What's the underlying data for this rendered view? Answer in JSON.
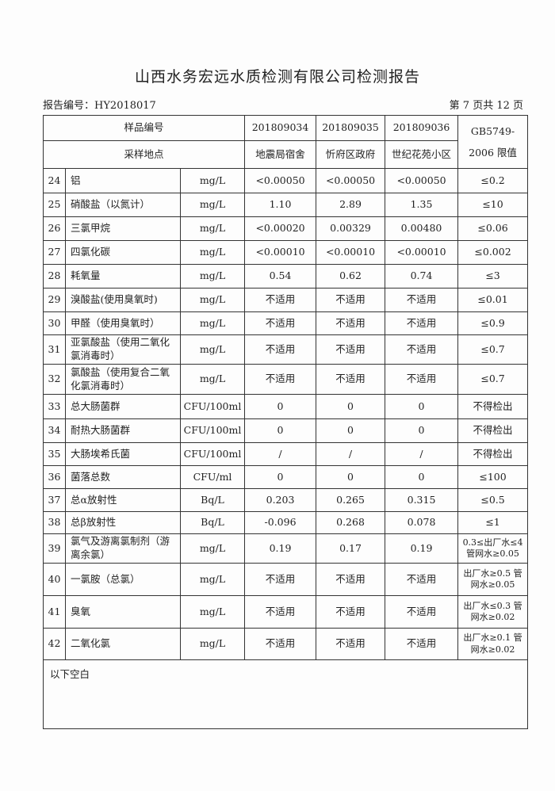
{
  "title": "山西水务宏远水质检测有限公司检测报告",
  "report_no": "报告编号：HY2018017",
  "page": "第 7 页共 12 页",
  "header": {
    "sample_no_label": "样品编号",
    "location_label": "采样地点",
    "samples": [
      "201809034",
      "201809035",
      "201809036"
    ],
    "locations": [
      "地震局宿舍",
      "忻府区政府",
      "世纪花苑小区"
    ],
    "limit_label": "GB5749-2006 限值"
  },
  "rows": [
    {
      "no": "24",
      "item": "铝",
      "unit": "mg/L",
      "v": [
        "<0.00050",
        "<0.00050",
        "<0.00050"
      ],
      "limit": "≤0.2"
    },
    {
      "no": "25",
      "item": "硝酸盐（以氮计）",
      "unit": "mg/L",
      "v": [
        "1.10",
        "2.89",
        "1.35"
      ],
      "limit": "≤10"
    },
    {
      "no": "26",
      "item": "三氯甲烷",
      "unit": "mg/L",
      "v": [
        "<0.00020",
        "0.00329",
        "0.00480"
      ],
      "limit": "≤0.06"
    },
    {
      "no": "27",
      "item": "四氯化碳",
      "unit": "mg/L",
      "v": [
        "<0.00010",
        "<0.00010",
        "<0.00010"
      ],
      "limit": "≤0.002"
    },
    {
      "no": "28",
      "item": "耗氧量",
      "unit": "mg/L",
      "v": [
        "0.54",
        "0.62",
        "0.74"
      ],
      "limit": "≤3"
    },
    {
      "no": "29",
      "item": "溴酸盐(使用臭氧时)",
      "unit": "mg/L",
      "v": [
        "不适用",
        "不适用",
        "不适用"
      ],
      "limit": "≤0.01"
    },
    {
      "no": "30",
      "item": "甲醛（使用臭氧时）",
      "unit": "mg/L",
      "v": [
        "不适用",
        "不适用",
        "不适用"
      ],
      "limit": "≤0.9"
    },
    {
      "no": "31",
      "item": "亚氯酸盐（使用二氧化氯消毒时）",
      "unit": "mg/L",
      "v": [
        "不适用",
        "不适用",
        "不适用"
      ],
      "limit": "≤0.7"
    },
    {
      "no": "32",
      "item": "氯酸盐（使用复合二氧化氯消毒时）",
      "unit": "mg/L",
      "v": [
        "不适用",
        "不适用",
        "不适用"
      ],
      "limit": "≤0.7"
    },
    {
      "no": "33",
      "item": "总大肠菌群",
      "unit": "CFU/100ml",
      "v": [
        "0",
        "0",
        "0"
      ],
      "limit": "不得检出"
    },
    {
      "no": "34",
      "item": "耐热大肠菌群",
      "unit": "CFU/100ml",
      "v": [
        "0",
        "0",
        "0"
      ],
      "limit": "不得检出"
    },
    {
      "no": "35",
      "item": "大肠埃希氏菌",
      "unit": "CFU/100ml",
      "v": [
        "/",
        "/",
        "/"
      ],
      "limit": "不得检出"
    },
    {
      "no": "36",
      "item": "菌落总数",
      "unit": "CFU/ml",
      "v": [
        "0",
        "0",
        "0"
      ],
      "limit": "≤100"
    },
    {
      "no": "37",
      "item": "总α放射性",
      "unit": "Bq/L",
      "v": [
        "0.203",
        "0.265",
        "0.315"
      ],
      "limit": "≤0.5"
    },
    {
      "no": "38",
      "item": "总β放射性",
      "unit": "Bq/L",
      "v": [
        "-0.096",
        "0.268",
        "0.078"
      ],
      "limit": "≤1"
    },
    {
      "no": "39",
      "item": "氯气及游离氯制剂（游离余氯）",
      "unit": "mg/L",
      "v": [
        "0.19",
        "0.17",
        "0.19"
      ],
      "limit": "0.3≤出厂水≤4 管网水≥0.05"
    },
    {
      "no": "40",
      "item": "一氯胺（总氯）",
      "unit": "mg/L",
      "v": [
        "不适用",
        "不适用",
        "不适用"
      ],
      "limit": "出厂水≥0.5 管网水≥0.05"
    },
    {
      "no": "41",
      "item": "臭氧",
      "unit": "mg/L",
      "v": [
        "不适用",
        "不适用",
        "不适用"
      ],
      "limit": "出厂水≤0.3 管网水≥0.02"
    },
    {
      "no": "42",
      "item": "二氧化氯",
      "unit": "mg/L",
      "v": [
        "不适用",
        "不适用",
        "不适用"
      ],
      "limit": "出厂水≥0.1 管网水≥0.02"
    }
  ],
  "footer": "以下空白"
}
